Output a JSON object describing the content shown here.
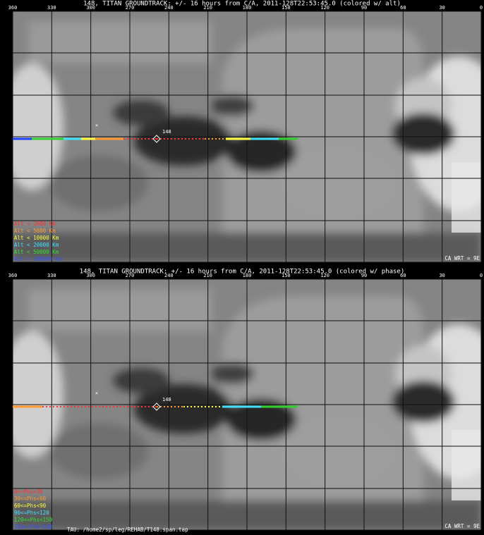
{
  "panels": [
    {
      "title": "148, TITAN GROUNDTRACK: +/- 16 hours from C/A, 2011-128T22:53:45.0 (colored w/ alt)",
      "lon_labels": [
        "360",
        "330",
        "300",
        "270",
        "240",
        "210",
        "180",
        "150",
        "120",
        "90",
        "60",
        "30",
        "0"
      ],
      "flyby_label": "148",
      "legend": [
        {
          "text": "Alt < 2000 Km",
          "color": "#ff3030"
        },
        {
          "text": "Alt < 5000 Km",
          "color": "#ff9a30"
        },
        {
          "text": "Alt < 10000 Km",
          "color": "#ffff40"
        },
        {
          "text": "Alt < 20000 Km",
          "color": "#40e0ff"
        },
        {
          "text": "Alt < 50000 Km",
          "color": "#30e030"
        },
        {
          "text": "Alt < 100000 Km",
          "color": "#3050ff"
        }
      ],
      "corner": "CA WRT = 9E"
    },
    {
      "title": "148, TITAN GROUNDTRACK: +/- 16 hours from C/A, 2011-128T22:53:45.0 (colored w/ phase)",
      "lon_labels": [
        "360",
        "330",
        "300",
        "270",
        "240",
        "210",
        "180",
        "150",
        "120",
        "90",
        "60",
        "30",
        "0"
      ],
      "flyby_label": "148",
      "legend": [
        {
          "text": "0<=Phs<30",
          "color": "#ff3030"
        },
        {
          "text": "30<=Phs<60",
          "color": "#ff9a30"
        },
        {
          "text": "60<=Phs<90",
          "color": "#ffff40"
        },
        {
          "text": "90<=Phs<120",
          "color": "#40e0ff"
        },
        {
          "text": "120<=Phs<150",
          "color": "#30e030"
        },
        {
          "text": "150<=Phs<180",
          "color": "#3050ff"
        }
      ],
      "corner": "CA WRT = 9E",
      "footer": "TAU: /home2/sp/leg/REHAB/T148.span.tap"
    }
  ]
}
